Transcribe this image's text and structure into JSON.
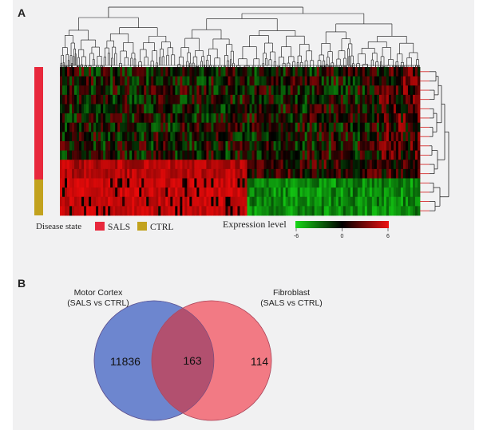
{
  "panels": {
    "a_label": "A",
    "b_label": "B"
  },
  "heatmap": {
    "disease_state_label": "Disease state",
    "legend": [
      {
        "label": "SALS",
        "color": "#e8283c"
      },
      {
        "label": "CTRL",
        "color": "#c2a21e"
      }
    ],
    "expression_label": "Expression level",
    "scale_ticks": [
      "-6",
      "0",
      "6"
    ],
    "scale_colors": {
      "low": "#16d816",
      "mid": "#000000",
      "high": "#ee1212"
    },
    "group_sizes": {
      "SALS": 12,
      "CTRL": 4
    },
    "dendrogram_line_color": "#d21818"
  },
  "venn": {
    "left_title_line1": "Motor Cortex",
    "left_title_line2": "(SALS vs CTRL)",
    "right_title_line1": "Fibroblast",
    "right_title_line2": "(SALS vs CTRL)",
    "left_only": "11836",
    "overlap": "163",
    "right_only": "114",
    "left_color": "#6d86cf",
    "right_color": "#f27a84",
    "overlap_color": "#b2506f"
  }
}
